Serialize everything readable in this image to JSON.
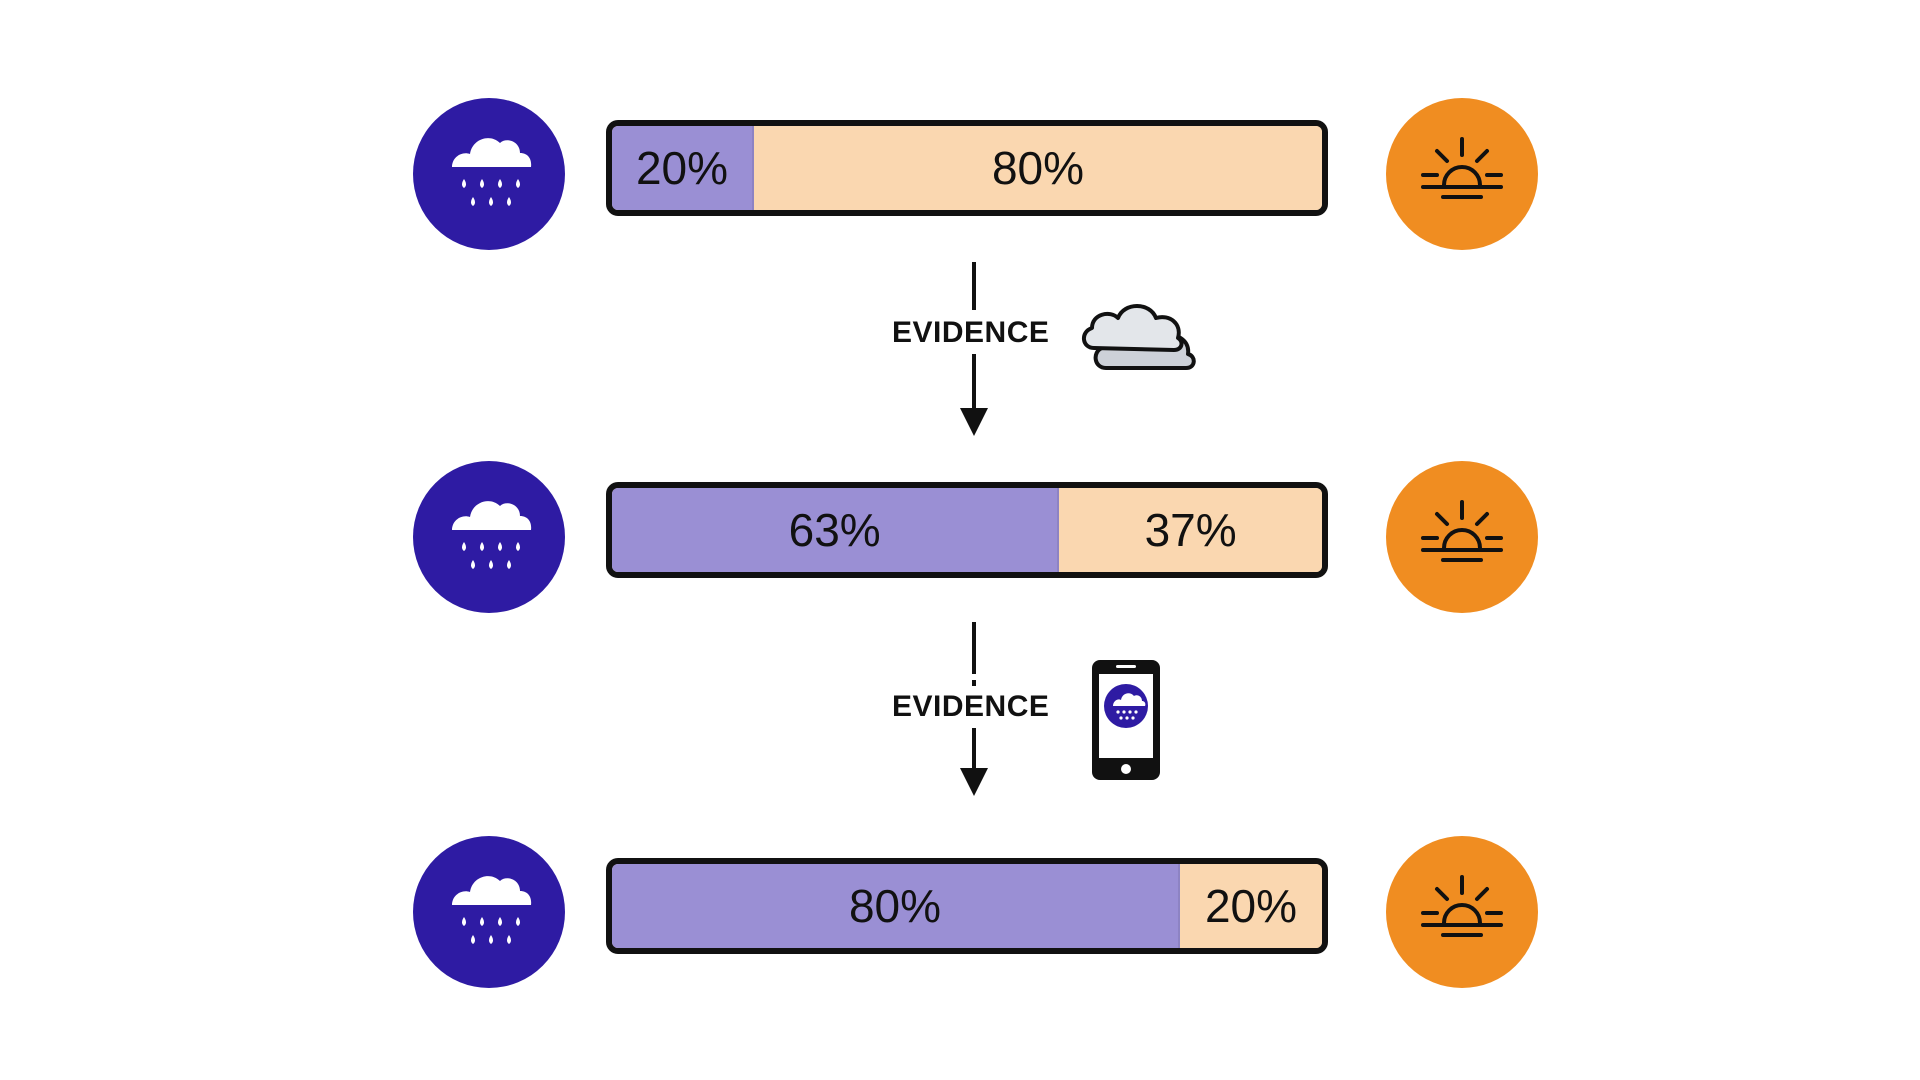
{
  "colors": {
    "rain": "#2e1ba3",
    "sun": "#f08d21",
    "rain_bar": "#9a8fd4",
    "sun_bar": "#fad7b0"
  },
  "icons": {
    "rain": "rain-cloud-icon",
    "sun": "sunrise-icon",
    "clouds": "clouds-icon",
    "phone": "phone-forecast-icon"
  },
  "bars": [
    {
      "rain_label": "20%",
      "sun_label": "80%",
      "rain_fraction": 0.2
    },
    {
      "rain_label": "63%",
      "sun_label": "37%",
      "rain_fraction": 0.63
    },
    {
      "rain_label": "80%",
      "sun_label": "20%",
      "rain_fraction": 0.8
    }
  ],
  "steps": [
    {
      "label": "EVIDENCE"
    },
    {
      "label": "EVIDENCE"
    }
  ]
}
